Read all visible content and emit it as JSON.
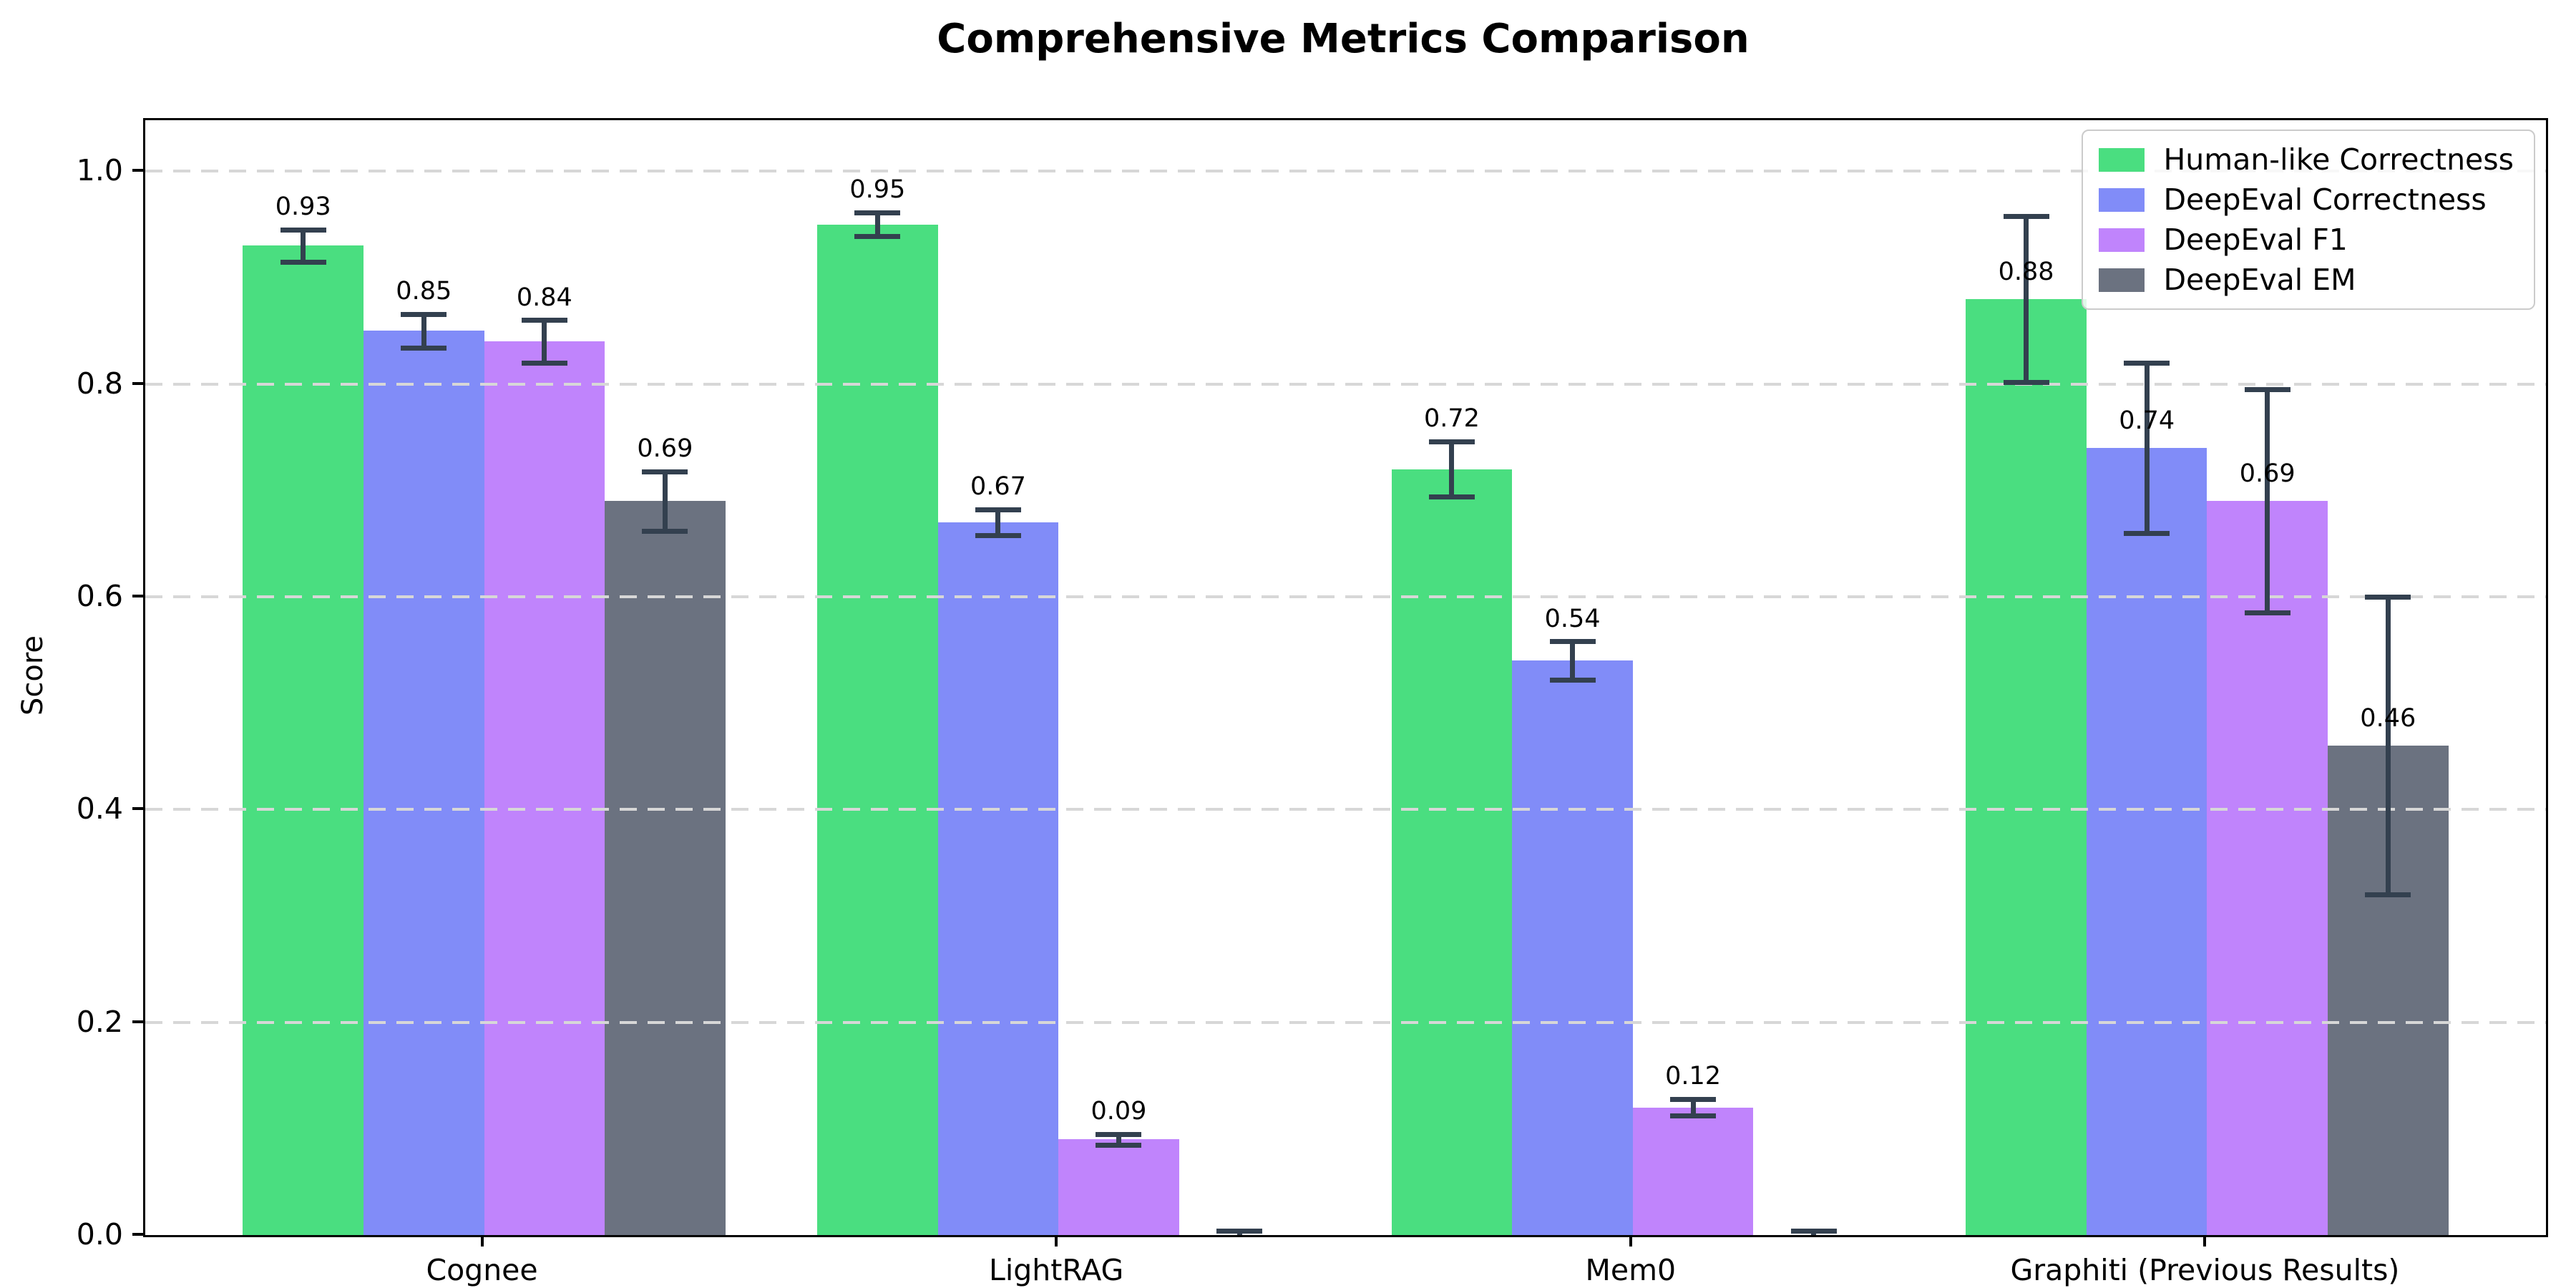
{
  "chart_data": {
    "type": "bar",
    "title": "Comprehensive Metrics Comparison",
    "ylabel": "Score",
    "xlabel": "",
    "categories": [
      "Cognee",
      "LightRAG",
      "Mem0",
      "Graphiti (Previous Results)"
    ],
    "series": [
      {
        "name": "Human-like Correctness",
        "color": "#4ade80",
        "values": [
          0.93,
          0.95,
          0.72,
          0.88
        ],
        "errors": [
          0.015,
          0.011,
          0.026,
          0.078
        ],
        "labels": [
          "0.93",
          "0.95",
          "0.72",
          "0.88"
        ]
      },
      {
        "name": "DeepEval Correctness",
        "color": "#818cf8",
        "values": [
          0.85,
          0.67,
          0.54,
          0.74
        ],
        "errors": [
          0.016,
          0.012,
          0.018,
          0.08
        ],
        "labels": [
          "0.85",
          "0.67",
          "0.54",
          "0.74"
        ]
      },
      {
        "name": "DeepEval F1",
        "color": "#c084fc",
        "values": [
          0.84,
          0.09,
          0.12,
          0.69
        ],
        "errors": [
          0.02,
          0.005,
          0.008,
          0.105
        ],
        "labels": [
          "0.84",
          "0.09",
          "0.12",
          "0.69"
        ]
      },
      {
        "name": "DeepEval EM",
        "color": "#6b7280",
        "values": [
          0.69,
          0.0,
          0.0,
          0.46
        ],
        "errors": [
          0.028,
          0.004,
          0.004,
          0.14
        ],
        "labels": [
          "0.69",
          "",
          "",
          "0.46"
        ]
      }
    ],
    "yticks": [
      0.0,
      0.2,
      0.4,
      0.6,
      0.8,
      1.0
    ],
    "ytick_labels": [
      "0.0",
      "0.2",
      "0.4",
      "0.6",
      "0.8",
      "1.0"
    ],
    "ylim": [
      0,
      1.048
    ],
    "grid": {
      "axis": "y",
      "style": "dashed",
      "color": "#d7d7d7",
      "drawn_over_bars": true
    },
    "error_bar_color": "#33404f",
    "legend_position": "upper right"
  }
}
